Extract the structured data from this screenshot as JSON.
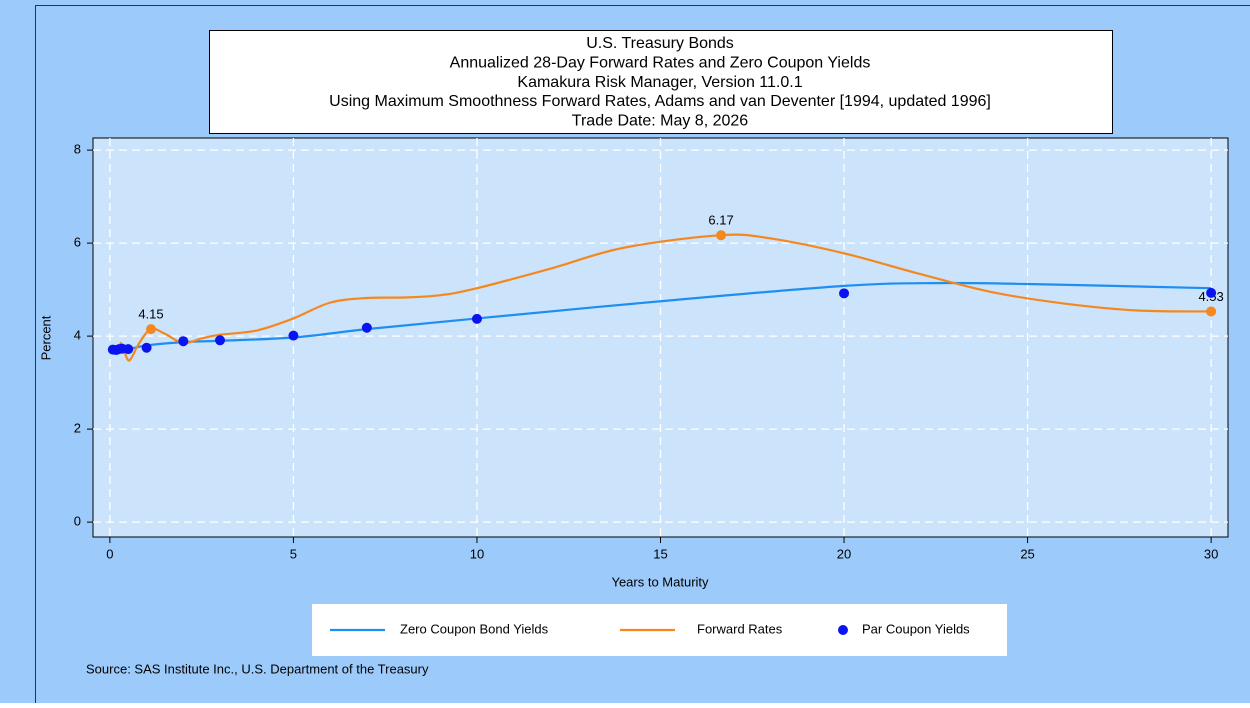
{
  "chart_data": {
    "type": "line",
    "title_lines": [
      "U.S. Treasury Bonds",
      "Annualized 28-Day Forward Rates and Zero Coupon Yields",
      "Kamakura Risk Manager, Version 11.0.1",
      "Using Maximum Smoothness Forward Rates, Adams and van Deventer [1994, updated 1996]",
      "Trade Date: May 8, 2026"
    ],
    "x_label": "Years to Maturity",
    "y_label": "Percent",
    "source": "Source: SAS Institute Inc., U.S. Department of the Treasury",
    "xlim": [
      -0.46,
      30.46
    ],
    "ylim": [
      -0.32,
      8.26
    ],
    "xticks": [
      0,
      5,
      10,
      15,
      20,
      25,
      30
    ],
    "yticks": [
      0,
      2,
      4,
      6,
      8
    ],
    "grid": true,
    "series": [
      {
        "name": "Zero Coupon Bond Yields",
        "color": "#1e8ef0",
        "style": "line",
        "x": [
          0.08,
          0.5,
          1,
          2,
          3,
          5,
          7,
          10,
          15,
          20,
          22.5,
          25,
          30
        ],
        "values": [
          3.7,
          3.72,
          3.8,
          3.87,
          3.9,
          3.97,
          4.15,
          4.38,
          4.75,
          5.08,
          5.14,
          5.12,
          5.03
        ]
      },
      {
        "name": "Forward Rates",
        "color": "#f5871f",
        "style": "line",
        "x": [
          0.08,
          0.25,
          0.3,
          0.4,
          0.5,
          0.6,
          0.8,
          1.12,
          1.5,
          2,
          2.5,
          3,
          4,
          5,
          6,
          7,
          8,
          9,
          10,
          12,
          14,
          16.65,
          18,
          20,
          22,
          24,
          26,
          28,
          30
        ],
        "values": [
          3.72,
          3.7,
          3.85,
          3.65,
          3.48,
          3.55,
          3.85,
          4.15,
          4.05,
          3.85,
          3.95,
          4.03,
          4.12,
          4.38,
          4.72,
          4.82,
          4.83,
          4.88,
          5.03,
          5.45,
          5.9,
          6.17,
          6.1,
          5.78,
          5.35,
          4.95,
          4.7,
          4.55,
          4.53
        ],
        "highlight_x": [
          1.12,
          16.65,
          30
        ],
        "highlight_values": [
          4.15,
          6.17,
          4.53
        ]
      },
      {
        "name": "Par Coupon Yields",
        "color": "#0a14f0",
        "style": "points",
        "x": [
          0.08,
          0.17,
          0.25,
          0.33,
          0.5,
          1,
          2,
          3,
          5,
          7,
          10,
          20,
          30
        ],
        "values": [
          3.71,
          3.7,
          3.72,
          3.73,
          3.72,
          3.75,
          3.89,
          3.91,
          4.01,
          4.18,
          4.37,
          4.92,
          4.93
        ]
      }
    ]
  }
}
